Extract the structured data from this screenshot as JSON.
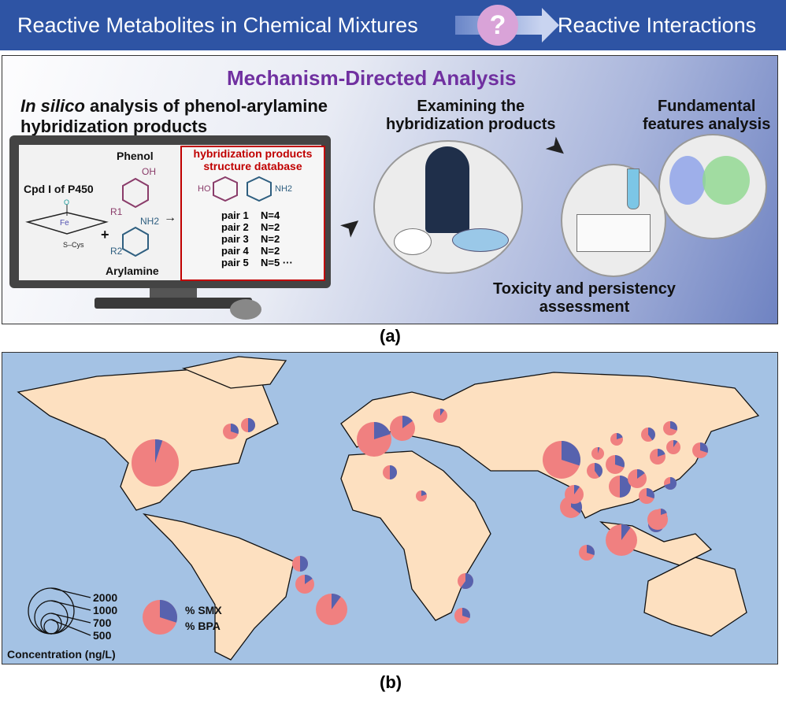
{
  "banner": {
    "left": "Reactive Metabolites in Chemical Mixtures",
    "question": "?",
    "right": "Reactive Interactions"
  },
  "panel_a": {
    "title": "Mechanism-Directed Analysis",
    "insilico_italic": "In silico",
    "insilico_rest": " analysis of phenol-arylamine",
    "insilico_line2": "hybridization products",
    "cpd": "Cpd I of P450",
    "cys": "S–Cys",
    "fe": "Fe",
    "o": "O",
    "plus": "+",
    "phenol": "Phenol",
    "oh": "OH",
    "r1": "R1",
    "nh2": "NH2",
    "r2": "R2",
    "arylamine": "Arylamine",
    "arrow": "→",
    "db_title1": "hybridization products",
    "db_title2": "structure database",
    "ho": "HO",
    "pairs": [
      {
        "p": "pair 1",
        "n": "N=4"
      },
      {
        "p": "pair 2",
        "n": "N=2"
      },
      {
        "p": "pair 3",
        "n": "N=2"
      },
      {
        "p": "pair 4",
        "n": "N=2"
      },
      {
        "p": "pair 5",
        "n": "N=5 ···"
      }
    ],
    "examining1": "Examining the",
    "examining2": "hybridization products",
    "fundamental1": "Fundamental",
    "fundamental2": "features analysis",
    "toxicity1": "Toxicity and persistency",
    "toxicity2": "assessment",
    "label": "(a)"
  },
  "panel_b": {
    "legend_sizes": [
      "2000",
      "1000",
      "700",
      "500"
    ],
    "legend_unit": "Concentration (ng/L)",
    "smx": "% SMX",
    "bpa": "% BPA",
    "colors": {
      "smx": "#5762ae",
      "bpa": "#f08080",
      "land": "#fde0c0",
      "ocean": "#a4c2e4"
    },
    "pie_smx_fraction": [
      0.05,
      0.3,
      0.5,
      0.2,
      0.15,
      0.1,
      0.5,
      0.3,
      0.35,
      0.1,
      0.4,
      0.2,
      0.3,
      0.4,
      0.3,
      0.2,
      0.1,
      0.3,
      0.5,
      0.15,
      0.3,
      1.0,
      0.7,
      0.2,
      0.1,
      0.2,
      0.3,
      0.05,
      0.2,
      0.6,
      0.3,
      0.5,
      0.1,
      0.15
    ],
    "label": "(b)"
  }
}
